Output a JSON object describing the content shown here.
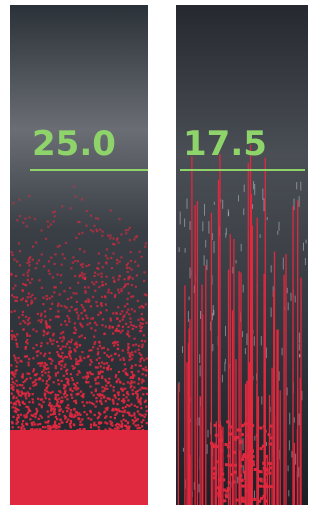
{
  "panels": [
    {
      "label": "25.0"
    },
    {
      "label": "17.5"
    }
  ]
}
